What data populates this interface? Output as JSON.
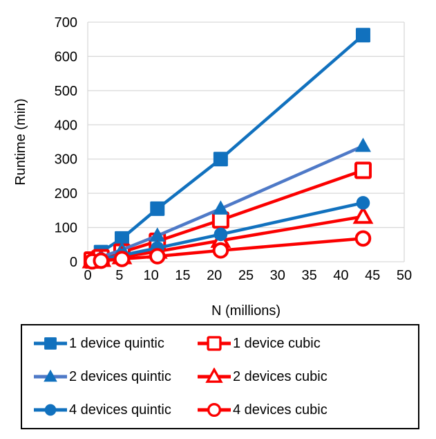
{
  "chart_data": {
    "type": "line",
    "title": "",
    "xlabel": "N (millions)",
    "ylabel": "Runtime (min)",
    "xlim": [
      0,
      50
    ],
    "ylim": [
      0,
      700
    ],
    "x_ticks": [
      0,
      5,
      10,
      15,
      20,
      25,
      30,
      35,
      40,
      45,
      50
    ],
    "y_ticks": [
      0,
      100,
      200,
      300,
      400,
      500,
      600,
      700
    ],
    "grid": "horizontal",
    "gridline_color": "#D9D9D9",
    "x": [
      0.7,
      2.1,
      5.4,
      11,
      21,
      43.5
    ],
    "series": [
      {
        "name": "1 device quintic",
        "marker": "square",
        "fill": "solid",
        "color": "#1171BE",
        "line_color": "#1171BE",
        "values": [
          8,
          28,
          68,
          155,
          300,
          662
        ]
      },
      {
        "name": "1 device cubic",
        "marker": "square",
        "fill": "open",
        "color": "#FB0000",
        "line_color": "#FB0000",
        "values": [
          5,
          12,
          28,
          60,
          122,
          267
        ]
      },
      {
        "name": "2 devices quintic",
        "marker": "triangle",
        "fill": "solid",
        "color": "#1171BE",
        "line_color": "#4E79C7",
        "values": [
          4,
          14,
          35,
          76,
          155,
          338
        ]
      },
      {
        "name": "2 devices cubic",
        "marker": "triangle",
        "fill": "open",
        "color": "#FB0000",
        "line_color": "#FB0000",
        "values": [
          2,
          6,
          14,
          30,
          62,
          132
        ]
      },
      {
        "name": "4 devices quintic",
        "marker": "circle",
        "fill": "solid",
        "color": "#1171BE",
        "line_color": "#1171BE",
        "values": [
          3,
          8,
          19,
          40,
          80,
          172
        ]
      },
      {
        "name": "4 devices cubic",
        "marker": "circle",
        "fill": "open",
        "color": "#FB0000",
        "line_color": "#FB0000",
        "values": [
          1,
          3,
          8,
          16,
          33,
          68
        ]
      }
    ],
    "legend": {
      "position": "bottom",
      "columns": 2,
      "border_color": "#000000",
      "labels": [
        "1 device quintic",
        "1 device cubic",
        "2 devices quintic",
        "2 devices cubic",
        "4 devices quintic",
        "4 devices cubic"
      ]
    }
  }
}
